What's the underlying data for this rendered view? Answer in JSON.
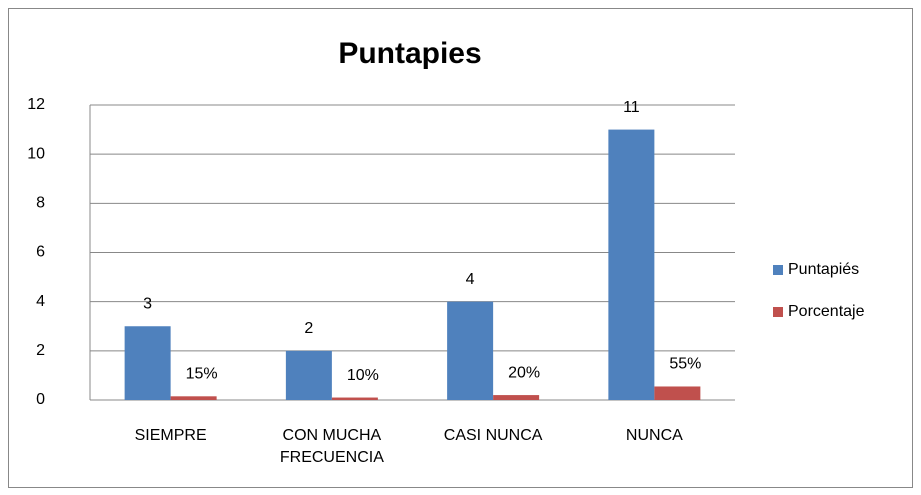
{
  "chart_data": {
    "type": "bar",
    "title": "Puntapies",
    "categories": [
      "SIEMPRE",
      "CON MUCHA FRECUENCIA",
      "CASI NUNCA",
      "NUNCA"
    ],
    "series": [
      {
        "name": "Puntapiés",
        "color": "#4f81bd",
        "values": [
          3,
          2,
          4,
          11
        ]
      },
      {
        "name": "Porcentaje",
        "color": "#c0504d",
        "values": [
          0.15,
          0.1,
          0.2,
          0.55
        ],
        "value_labels": [
          "15%",
          "10%",
          "20%",
          "55%"
        ]
      }
    ],
    "ylim": [
      0,
      12
    ],
    "yticks": [
      0,
      2,
      4,
      6,
      8,
      10,
      12
    ],
    "grid": true,
    "legend": "right"
  }
}
